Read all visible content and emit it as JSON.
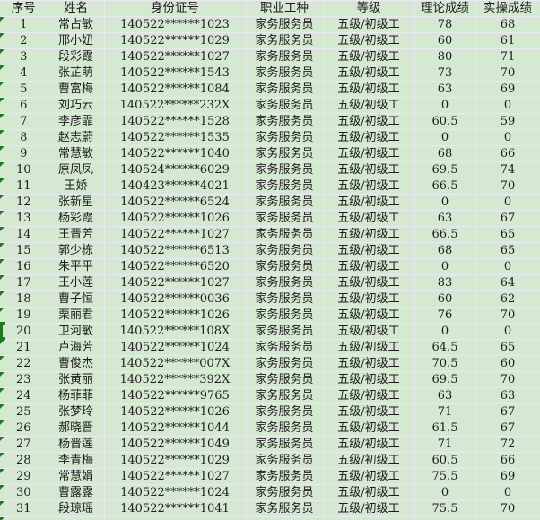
{
  "colors": {
    "cell_bg": "#d5e8d1",
    "gridline": "#eae8f0",
    "text": "#1d1d1d",
    "indicator_green": "#1f7a1f"
  },
  "columns": [
    {
      "key": "seq",
      "label": "序号"
    },
    {
      "key": "name",
      "label": "姓名"
    },
    {
      "key": "id",
      "label": "身份证号"
    },
    {
      "key": "job",
      "label": "职业工种"
    },
    {
      "key": "level",
      "label": "等级"
    },
    {
      "key": "theory",
      "label": "理论成绩"
    },
    {
      "key": "practice",
      "label": "实操成绩"
    }
  ],
  "selection": {
    "selected_row_seq": "20"
  },
  "rows": [
    {
      "seq": "1",
      "name": "常占敏",
      "id": "140522******1023",
      "job": "家务服务员",
      "level": "五级/初级工",
      "theory": "78",
      "practice": "68"
    },
    {
      "seq": "2",
      "name": "邢小妞",
      "id": "140522******1029",
      "job": "家务服务员",
      "level": "五级/初级工",
      "theory": "60",
      "practice": "61"
    },
    {
      "seq": "3",
      "name": "段彩霞",
      "id": "140522******1027",
      "job": "家务服务员",
      "level": "五级/初级工",
      "theory": "80",
      "practice": "71"
    },
    {
      "seq": "4",
      "name": "张芷萌",
      "id": "140522******1543",
      "job": "家务服务员",
      "level": "五级/初级工",
      "theory": "73",
      "practice": "70"
    },
    {
      "seq": "5",
      "name": "曹富梅",
      "id": "140522******1084",
      "job": "家务服务员",
      "level": "五级/初级工",
      "theory": "63",
      "practice": "69"
    },
    {
      "seq": "6",
      "name": "刘巧云",
      "id": "140522******232X",
      "job": "家务服务员",
      "level": "五级/初级工",
      "theory": "0",
      "practice": "0"
    },
    {
      "seq": "7",
      "name": "李彦霏",
      "id": "140522******1528",
      "job": "家务服务员",
      "level": "五级/初级工",
      "theory": "60.5",
      "practice": "59"
    },
    {
      "seq": "8",
      "name": "赵志蔚",
      "id": "140522******1535",
      "job": "家务服务员",
      "level": "五级/初级工",
      "theory": "0",
      "practice": "0"
    },
    {
      "seq": "9",
      "name": "常慧敏",
      "id": "140522******1040",
      "job": "家务服务员",
      "level": "五级/初级工",
      "theory": "68",
      "practice": "66"
    },
    {
      "seq": "10",
      "name": "原凤凤",
      "id": "140524******6029",
      "job": "家务服务员",
      "level": "五级/初级工",
      "theory": "69.5",
      "practice": "74"
    },
    {
      "seq": "11",
      "name": "王娇",
      "id": "140423******4021",
      "job": "家务服务员",
      "level": "五级/初级工",
      "theory": "66.5",
      "practice": "70"
    },
    {
      "seq": "12",
      "name": "张新星",
      "id": "140522******6524",
      "job": "家务服务员",
      "level": "五级/初级工",
      "theory": "0",
      "practice": "0"
    },
    {
      "seq": "13",
      "name": "杨彩霞",
      "id": "140522******1026",
      "job": "家务服务员",
      "level": "五级/初级工",
      "theory": "63",
      "practice": "67"
    },
    {
      "seq": "14",
      "name": "王晋芳",
      "id": "140522******1027",
      "job": "家务服务员",
      "level": "五级/初级工",
      "theory": "66.5",
      "practice": "65"
    },
    {
      "seq": "15",
      "name": "郭少栋",
      "id": "140522******6513",
      "job": "家务服务员",
      "level": "五级/初级工",
      "theory": "68",
      "practice": "65"
    },
    {
      "seq": "16",
      "name": "朱平平",
      "id": "140522******6520",
      "job": "家务服务员",
      "level": "五级/初级工",
      "theory": "0",
      "practice": "0"
    },
    {
      "seq": "17",
      "name": "王小莲",
      "id": "140522******1027",
      "job": "家务服务员",
      "level": "五级/初级工",
      "theory": "83",
      "practice": "64"
    },
    {
      "seq": "18",
      "name": "曹子恒",
      "id": "140522******0036",
      "job": "家务服务员",
      "level": "五级/初级工",
      "theory": "60",
      "practice": "62"
    },
    {
      "seq": "19",
      "name": "栗丽君",
      "id": "140522******1026",
      "job": "家务服务员",
      "level": "五级/初级工",
      "theory": "76",
      "practice": "70"
    },
    {
      "seq": "20",
      "name": "卫河敏",
      "id": "140522******108X",
      "job": "家务服务员",
      "level": "五级/初级工",
      "theory": "0",
      "practice": "0"
    },
    {
      "seq": "21",
      "name": "卢海芳",
      "id": "140522******1024",
      "job": "家务服务员",
      "level": "五级/初级工",
      "theory": "64.5",
      "practice": "65"
    },
    {
      "seq": "22",
      "name": "曹俊杰",
      "id": "140522******007X",
      "job": "家务服务员",
      "level": "五级/初级工",
      "theory": "70.5",
      "practice": "60"
    },
    {
      "seq": "23",
      "name": "张黄丽",
      "id": "140522******392X",
      "job": "家务服务员",
      "level": "五级/初级工",
      "theory": "69.5",
      "practice": "70"
    },
    {
      "seq": "24",
      "name": "杨菲菲",
      "id": "140522******9765",
      "job": "家务服务员",
      "level": "五级/初级工",
      "theory": "63",
      "practice": "63"
    },
    {
      "seq": "25",
      "name": "张梦玲",
      "id": "140522******1026",
      "job": "家务服务员",
      "level": "五级/初级工",
      "theory": "71",
      "practice": "67"
    },
    {
      "seq": "26",
      "name": "郝晓晋",
      "id": "140522******1044",
      "job": "家务服务员",
      "level": "五级/初级工",
      "theory": "61.5",
      "practice": "67"
    },
    {
      "seq": "27",
      "name": "杨晋莲",
      "id": "140522******1049",
      "job": "家务服务员",
      "level": "五级/初级工",
      "theory": "71",
      "practice": "72"
    },
    {
      "seq": "28",
      "name": "李青梅",
      "id": "140522******1029",
      "job": "家务服务员",
      "level": "五级/初级工",
      "theory": "60.5",
      "practice": "66"
    },
    {
      "seq": "29",
      "name": "常慧娟",
      "id": "140522******1027",
      "job": "家务服务员",
      "level": "五级/初级工",
      "theory": "75.5",
      "practice": "69"
    },
    {
      "seq": "30",
      "name": "曹露露",
      "id": "140522******1024",
      "job": "家务服务员",
      "level": "五级/初级工",
      "theory": "0",
      "practice": "0"
    },
    {
      "seq": "31",
      "name": "段琼瑶",
      "id": "140522******1041",
      "job": "家务服务员",
      "level": "五级/初级工",
      "theory": "75.5",
      "practice": "70"
    }
  ]
}
